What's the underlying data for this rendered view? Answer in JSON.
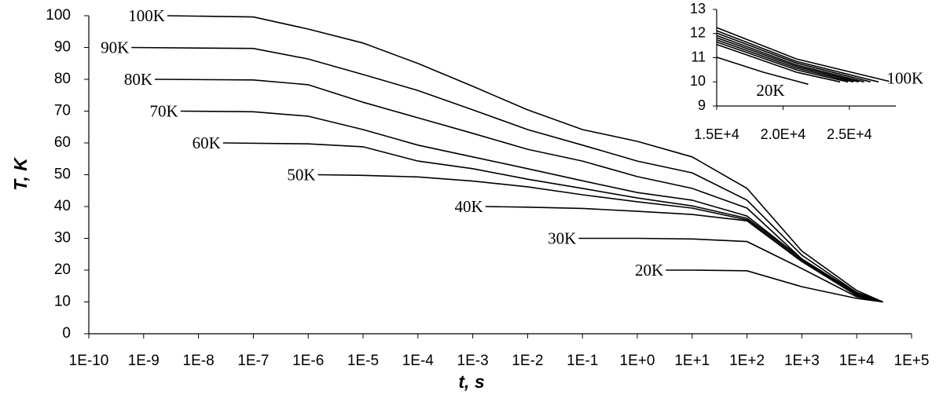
{
  "chart_data": [
    {
      "type": "line",
      "xscale": "log",
      "xlabel": "t, s",
      "ylabel": "T, K",
      "xlim": [
        1e-10,
        100000
      ],
      "ylim": [
        0,
        100
      ],
      "xticks": [
        {
          "value": 1e-10,
          "label": "1E-10"
        },
        {
          "value": 1e-09,
          "label": "1E-9"
        },
        {
          "value": 1e-08,
          "label": "1E-8"
        },
        {
          "value": 1e-07,
          "label": "1E-7"
        },
        {
          "value": 1e-06,
          "label": "1E-6"
        },
        {
          "value": 1e-05,
          "label": "1E-5"
        },
        {
          "value": 0.0001,
          "label": "1E-4"
        },
        {
          "value": 0.001,
          "label": "1E-3"
        },
        {
          "value": 0.01,
          "label": "1E-2"
        },
        {
          "value": 0.1,
          "label": "1E-1"
        },
        {
          "value": 1,
          "label": "1E+0"
        },
        {
          "value": 10,
          "label": "1E+1"
        },
        {
          "value": 100,
          "label": "1E+2"
        },
        {
          "value": 1000,
          "label": "1E+3"
        },
        {
          "value": 10000,
          "label": "1E+4"
        },
        {
          "value": 100000,
          "label": "1E+5"
        }
      ],
      "yticks": [
        0,
        10,
        20,
        30,
        40,
        50,
        60,
        70,
        80,
        90,
        100
      ],
      "series": [
        {
          "name": "100K",
          "color": "#000000",
          "x": [
            2.7e-09,
            1e-07,
            1e-06,
            1e-05,
            0.0001,
            0.001,
            0.01,
            0.1,
            1,
            10,
            100,
            1000,
            10000,
            30000
          ],
          "values": [
            100,
            99.6,
            95.8,
            91.4,
            85,
            77.8,
            70.4,
            64.2,
            60.5,
            55.6,
            45.7,
            26,
            13.6,
            10
          ]
        },
        {
          "name": "90K",
          "color": "#000000",
          "x": [
            6e-10,
            1e-07,
            1e-06,
            1e-05,
            0.0001,
            0.001,
            0.01,
            0.1,
            1,
            10,
            100,
            1000,
            10000,
            30000
          ],
          "values": [
            90,
            89.7,
            86.4,
            81.5,
            76.5,
            70.4,
            64.2,
            59.3,
            54.3,
            50.6,
            42,
            24.7,
            13,
            10
          ]
        },
        {
          "name": "80K",
          "color": "#000000",
          "x": [
            1.6e-09,
            1e-07,
            1e-06,
            1e-05,
            0.0001,
            0.001,
            0.01,
            0.1,
            1,
            10,
            100,
            1000,
            10000,
            30000
          ],
          "values": [
            80,
            79.8,
            78.3,
            72.8,
            67.9,
            63,
            58,
            54.3,
            49.4,
            45.7,
            39.5,
            23.5,
            12.8,
            10
          ]
        },
        {
          "name": "70K",
          "color": "#000000",
          "x": [
            4.7e-09,
            1e-07,
            1e-06,
            1e-05,
            0.0001,
            0.001,
            0.01,
            0.1,
            1,
            10,
            100,
            1000,
            10000,
            30000
          ],
          "values": [
            70,
            69.8,
            68.4,
            64.2,
            59.3,
            55.6,
            51.9,
            48.1,
            44.4,
            42,
            37,
            23.5,
            12.6,
            10
          ]
        },
        {
          "name": "60K",
          "color": "#000000",
          "x": [
            2.8e-08,
            1e-06,
            1e-05,
            0.0001,
            0.001,
            0.01,
            0.1,
            1,
            10,
            100,
            1000,
            10000,
            30000
          ],
          "values": [
            60,
            59.7,
            58.8,
            54.3,
            51.9,
            48.6,
            45.7,
            42.7,
            40.2,
            36.3,
            23.5,
            12.3,
            10
          ]
        },
        {
          "name": "50K",
          "color": "#000000",
          "x": [
            1.5e-06,
            1e-05,
            0.0001,
            0.001,
            0.01,
            0.1,
            1,
            10,
            100,
            1000,
            10000,
            30000
          ],
          "values": [
            50,
            49.8,
            49.3,
            48,
            46.2,
            43.7,
            41.5,
            39.5,
            35.8,
            23,
            12.3,
            10
          ]
        },
        {
          "name": "40K",
          "color": "#000000",
          "x": [
            0.0017,
            0.01,
            0.1,
            1,
            10,
            100,
            1000,
            10000,
            30000
          ],
          "values": [
            40,
            39.8,
            39.4,
            38.5,
            37.5,
            35.5,
            22.7,
            12,
            10
          ]
        },
        {
          "name": "30K",
          "color": "#000000",
          "x": [
            0.085,
            1,
            10,
            100,
            1000,
            10000,
            30000
          ],
          "values": [
            30,
            30,
            29.8,
            29,
            20.5,
            11.6,
            10
          ]
        },
        {
          "name": "20K",
          "color": "#000000",
          "x": [
            3.3,
            10,
            100,
            1000,
            10000,
            30000
          ],
          "values": [
            20,
            20,
            19.8,
            14.8,
            11.1,
            10
          ]
        }
      ]
    },
    {
      "type": "line",
      "xscale": "linear",
      "xlim": [
        15000,
        28500
      ],
      "ylim": [
        9,
        13
      ],
      "xticks": [
        {
          "value": 15000,
          "label": "1.5E+4"
        },
        {
          "value": 20000,
          "label": "2.0E+4"
        },
        {
          "value": 25000,
          "label": "2.5E+4"
        }
      ],
      "yticks": [
        9,
        10,
        11,
        12,
        13
      ],
      "series": [
        {
          "name": "100K",
          "color": "#000000",
          "x": [
            15000,
            21000,
            28000
          ],
          "values": [
            12.25,
            10.95,
            10.02
          ]
        },
        {
          "color": "#000000",
          "x": [
            15000,
            21000,
            27200
          ],
          "values": [
            12.12,
            10.85,
            10
          ]
        },
        {
          "color": "#000000",
          "x": [
            15000,
            21000,
            26600
          ],
          "values": [
            12.02,
            10.78,
            10
          ]
        },
        {
          "color": "#000000",
          "x": [
            15000,
            21000,
            26100
          ],
          "values": [
            11.92,
            10.7,
            10
          ]
        },
        {
          "color": "#000000",
          "x": [
            15000,
            21000,
            25700
          ],
          "values": [
            11.83,
            10.64,
            10
          ]
        },
        {
          "color": "#000000",
          "x": [
            15000,
            21000,
            25300
          ],
          "values": [
            11.74,
            10.57,
            10
          ]
        },
        {
          "color": "#000000",
          "x": [
            15000,
            21000,
            24900
          ],
          "values": [
            11.65,
            10.5,
            10
          ]
        },
        {
          "color": "#000000",
          "x": [
            15000,
            21000,
            24300
          ],
          "values": [
            11.55,
            10.4,
            10
          ]
        },
        {
          "name": "20K",
          "color": "#000000",
          "x": [
            15000,
            18500,
            21900
          ],
          "values": [
            11.02,
            10.4,
            9.9
          ]
        }
      ]
    }
  ]
}
